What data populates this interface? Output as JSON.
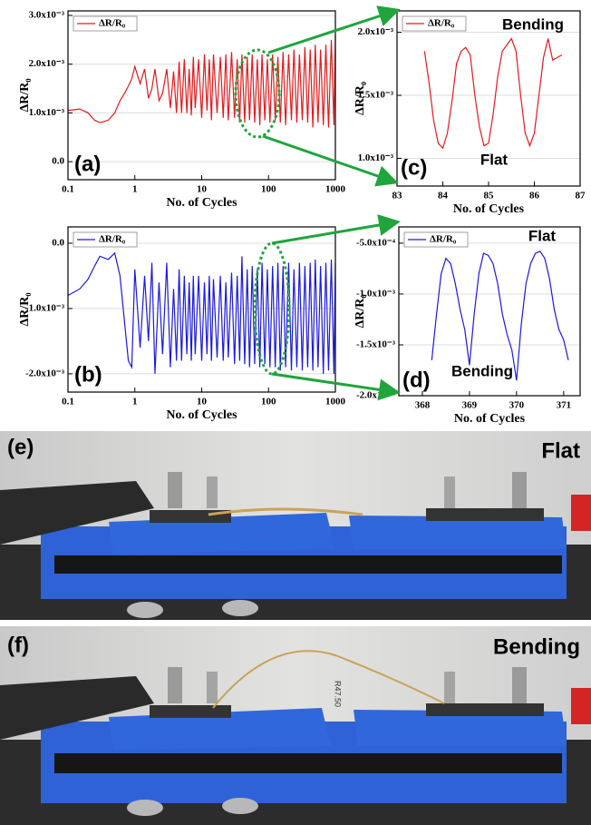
{
  "chart_data": [
    {
      "type": "line",
      "panel_label": "(a)",
      "x_label": "No. of Cycles",
      "y_label": "ΔR/R₀",
      "xscale": "log",
      "grid": true,
      "legend": "upper left",
      "xlim": [
        0.1,
        1000
      ],
      "xticks": [
        0.1,
        1,
        10,
        100,
        1000
      ],
      "ylim": [
        -0.00037,
        0.003093
      ],
      "yticks": [
        {
          "value": 0,
          "label": "0.0"
        },
        {
          "value": 0.001,
          "label": "1.0x10⁻³"
        },
        {
          "value": 0.002,
          "label": "2.0x10⁻³"
        },
        {
          "value": 0.003,
          "label": "3.0x10⁻³"
        }
      ],
      "x": [
        0.1,
        0.15,
        0.2,
        0.25,
        0.3,
        0.4,
        0.5,
        0.6,
        0.7,
        0.8,
        0.9,
        1.0,
        1.2,
        1.4,
        1.6,
        1.8,
        2.0,
        2.3,
        2.6,
        3.0,
        3.4,
        3.8,
        4.2,
        4.6,
        5,
        5.5,
        6,
        6.5,
        7,
        7.5,
        8,
        9,
        10,
        11,
        12,
        13,
        14,
        15,
        17,
        19,
        21,
        23,
        25,
        28,
        31,
        34,
        37,
        40,
        44,
        48,
        52,
        57,
        62,
        68,
        74,
        80,
        88,
        96,
        105,
        115,
        126,
        138,
        150,
        165,
        180,
        200,
        220,
        240,
        265,
        290,
        320,
        350,
        385,
        420,
        460,
        500,
        550,
        600,
        660,
        720,
        790,
        870,
        950,
        1000
      ],
      "series": [
        {
          "name": "ΔR/R₀",
          "color": "#e31a1c",
          "values": [
            0.00105,
            0.00108,
            0.001,
            0.00085,
            0.0008,
            0.00085,
            0.001,
            0.00125,
            0.0014,
            0.00155,
            0.0017,
            0.00195,
            0.0016,
            0.0019,
            0.0013,
            0.0015,
            0.0019,
            0.00125,
            0.0014,
            0.0019,
            0.0011,
            0.00185,
            0.001,
            0.00205,
            0.001,
            0.0021,
            0.001,
            0.0019,
            0.00095,
            0.00215,
            0.0011,
            0.0021,
            0.0009,
            0.0022,
            0.00105,
            0.0021,
            0.00085,
            0.0022,
            0.001,
            0.00215,
            0.0009,
            0.0022,
            0.00085,
            0.00225,
            0.0009,
            0.0021,
            0.0008,
            0.0022,
            0.0008,
            0.00215,
            0.00085,
            0.0022,
            0.0008,
            0.0021,
            0.00075,
            0.0022,
            0.00085,
            0.0021,
            0.0008,
            0.0022,
            0.00085,
            0.00215,
            0.0008,
            0.00225,
            0.00075,
            0.0022,
            0.00085,
            0.0023,
            0.0008,
            0.0022,
            0.00085,
            0.00235,
            0.0008,
            0.0023,
            0.0007,
            0.0024,
            0.0008,
            0.0023,
            0.00075,
            0.0024,
            0.0007,
            0.0025,
            0.00075,
            0.0026
          ]
        }
      ]
    },
    {
      "type": "line",
      "panel_label": "(b)",
      "x_label": "No. of Cycles",
      "y_label": "ΔR/R₀",
      "xscale": "log",
      "grid": true,
      "legend": "upper left",
      "xlim": [
        0.1,
        1000
      ],
      "xticks": [
        0.1,
        1,
        10,
        100,
        1000
      ],
      "ylim": [
        -0.00228,
        0.00025
      ],
      "yticks": [
        {
          "value": 0,
          "label": "0.0"
        },
        {
          "value": -0.001,
          "label": "-1.0x10⁻³"
        },
        {
          "value": -0.002,
          "label": "-2.0x10⁻³"
        }
      ],
      "x": [
        0.1,
        0.15,
        0.2,
        0.25,
        0.3,
        0.4,
        0.5,
        0.6,
        0.7,
        0.8,
        0.9,
        1.0,
        1.2,
        1.4,
        1.6,
        1.8,
        2.0,
        2.3,
        2.6,
        3.0,
        3.4,
        3.8,
        4.2,
        4.6,
        5,
        5.5,
        6,
        6.5,
        7,
        7.5,
        8,
        9,
        10,
        11,
        12,
        13,
        14,
        15,
        17,
        19,
        21,
        23,
        25,
        28,
        31,
        34,
        37,
        40,
        44,
        48,
        52,
        57,
        62,
        68,
        74,
        80,
        88,
        96,
        105,
        115,
        126,
        138,
        150,
        165,
        180,
        200,
        220,
        240,
        265,
        290,
        320,
        350,
        385,
        420,
        460,
        500,
        550,
        600,
        660,
        720,
        790,
        870,
        950,
        1000
      ],
      "series": [
        {
          "name": "ΔR/R₀",
          "color": "#1a1ae0",
          "values": [
            -0.0008,
            -0.0007,
            -0.00055,
            -0.00035,
            -0.0002,
            -0.00025,
            -0.00015,
            -0.0005,
            -0.0012,
            -0.0018,
            -0.0019,
            -0.0004,
            -0.0016,
            -0.0005,
            -0.0015,
            -0.0003,
            -0.002,
            -0.0006,
            -0.0017,
            -0.0003,
            -0.0019,
            -0.0007,
            -0.0018,
            -0.0004,
            -0.0018,
            -0.0005,
            -0.0017,
            -0.0006,
            -0.0018,
            -0.0005,
            -0.0017,
            -0.0005,
            -0.0018,
            -0.0006,
            -0.0017,
            -0.0005,
            -0.0018,
            -0.00055,
            -0.00175,
            -0.0005,
            -0.0018,
            -0.0006,
            -0.00175,
            -0.00045,
            -0.00185,
            -0.0005,
            -0.0018,
            -0.0002,
            -0.00185,
            -0.0004,
            -0.0019,
            -0.00035,
            -0.00185,
            -0.0004,
            -0.0019,
            -0.0003,
            -0.00185,
            -0.0004,
            -0.0019,
            -0.00035,
            -0.0019,
            -0.0003,
            -0.00195,
            -0.00035,
            -0.0019,
            -0.0003,
            -0.00195,
            -0.0004,
            -0.0019,
            -0.0003,
            -0.00195,
            -0.00035,
            -0.0019,
            -0.0003,
            -0.00195,
            -0.00025,
            -0.0019,
            -0.00035,
            -0.002,
            -0.0003,
            -0.00195,
            -0.00025,
            -0.002,
            -0.0003
          ]
        }
      ]
    },
    {
      "type": "line",
      "panel_label": "(c)",
      "x_label": "No. of Cycles",
      "y_label": "ΔR/R₀",
      "grid": true,
      "legend": "upper left",
      "annotations": [
        "Bending",
        "Flat"
      ],
      "xlim": [
        83,
        87
      ],
      "xticks": [
        83,
        84,
        85,
        86,
        87
      ],
      "ylim": [
        0.00078,
        0.00217
      ],
      "yticks": [
        {
          "value": 0.001,
          "label": "1.0x10⁻³"
        },
        {
          "value": 0.0015,
          "label": "1.5x10⁻³"
        },
        {
          "value": 0.002,
          "label": "2.0x10⁻³"
        }
      ],
      "x": [
        83.6,
        83.7,
        83.8,
        83.9,
        84.0,
        84.1,
        84.2,
        84.3,
        84.4,
        84.5,
        84.6,
        84.7,
        84.8,
        84.9,
        85.0,
        85.1,
        85.2,
        85.3,
        85.4,
        85.5,
        85.6,
        85.7,
        85.8,
        85.9,
        86.0,
        86.1,
        86.2,
        86.3,
        86.4,
        86.5,
        86.6
      ],
      "series": [
        {
          "name": "ΔR/R₀",
          "color": "#e31a1c",
          "values": [
            0.00185,
            0.0016,
            0.0013,
            0.00112,
            0.00108,
            0.0012,
            0.00145,
            0.00175,
            0.00185,
            0.00188,
            0.00182,
            0.0015,
            0.00125,
            0.0011,
            0.00112,
            0.00135,
            0.00165,
            0.00185,
            0.0019,
            0.00195,
            0.00185,
            0.0015,
            0.0012,
            0.0011,
            0.0012,
            0.0015,
            0.0018,
            0.00195,
            0.00178,
            0.0018,
            0.00182
          ]
        }
      ]
    },
    {
      "type": "line",
      "panel_label": "(d)",
      "x_label": "No. of Cycles",
      "y_label": "ΔR/R₀",
      "grid": true,
      "legend": "upper left",
      "annotations": [
        "Flat",
        "Bending"
      ],
      "xlim": [
        367.5,
        371.35
      ],
      "xticks": [
        368,
        369,
        370,
        371
      ],
      "ylim": [
        -0.002,
        -0.00034
      ],
      "yticks": [
        {
          "value": -0.0005,
          "label": "-5.0x10⁻⁴"
        },
        {
          "value": -0.001,
          "label": "-1.0x10⁻³"
        },
        {
          "value": -0.0015,
          "label": "-1.5x10⁻³"
        },
        {
          "value": -0.002,
          "label": "-2.0x10⁻³"
        }
      ],
      "x": [
        368.2,
        368.3,
        368.4,
        368.5,
        368.6,
        368.7,
        368.8,
        368.9,
        369.0,
        369.1,
        369.2,
        369.3,
        369.4,
        369.5,
        369.6,
        369.7,
        369.8,
        369.9,
        370.0,
        370.1,
        370.2,
        370.3,
        370.4,
        370.5,
        370.6,
        370.7,
        370.8,
        370.9,
        371.0,
        371.1
      ],
      "series": [
        {
          "name": "ΔR/R₀",
          "color": "#1a1ae0",
          "values": [
            -0.00165,
            -0.0012,
            -0.0008,
            -0.00065,
            -0.0007,
            -0.0009,
            -0.00115,
            -0.00135,
            -0.0017,
            -0.0012,
            -0.0008,
            -0.0006,
            -0.00062,
            -0.0007,
            -0.0009,
            -0.0012,
            -0.0014,
            -0.00155,
            -0.00185,
            -0.0013,
            -0.0009,
            -0.0007,
            -0.0006,
            -0.00058,
            -0.00065,
            -0.00085,
            -0.00115,
            -0.00135,
            -0.00145,
            -0.00165
          ]
        }
      ]
    }
  ],
  "photos": [
    {
      "label": "(e)",
      "caption": "Flat"
    },
    {
      "label": "(f)",
      "caption": "Bending",
      "sticker": "R47.50"
    }
  ]
}
